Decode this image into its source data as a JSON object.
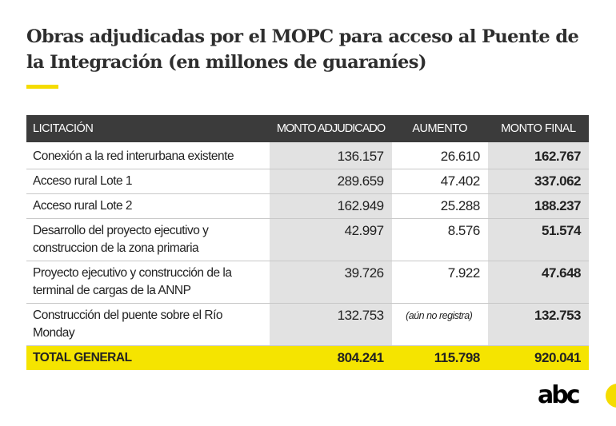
{
  "title": "Obras adjudicadas por el MOPC para acceso al Puente de la Integración (en millones de guaraníes)",
  "logo": "abc",
  "colors": {
    "header": "#3b3b3b",
    "accent": "#f5e400",
    "shade": "#e2e2e2"
  },
  "chart_data": {
    "type": "table",
    "title": "Obras adjudicadas por el MOPC para acceso al Puente de la Integración (en millones de guaraníes)",
    "columns": [
      "LICITACIÓN",
      "MONTO ADJUDICADO",
      "AUMENTO",
      "MONTO FINAL"
    ],
    "rows": [
      {
        "name": "Conexión a la red interurbana existente",
        "monto": "136.157",
        "aumento": "26.610",
        "final": "162.767"
      },
      {
        "name": "Acceso rural Lote 1",
        "monto": "289.659",
        "aumento": "47.402",
        "final": "337.062"
      },
      {
        "name": "Acceso rural Lote 2",
        "monto": "162.949",
        "aumento": "25.288",
        "final": "188.237"
      },
      {
        "name": "Desarrollo del proyecto ejecutivo y construccion de la zona primaria",
        "monto": "42.997",
        "aumento": "8.576",
        "final": "51.574"
      },
      {
        "name": "Proyecto ejecutivo y construcción de la terminal de cargas de la ANNP",
        "monto": "39.726",
        "aumento": "7.922",
        "final": "47.648"
      },
      {
        "name": "Construcción del puente sobre el Río Monday",
        "monto": "132.753",
        "aumento": "(aún no registra)",
        "final": "132.753"
      }
    ],
    "total": {
      "name": "TOTAL GENERAL",
      "monto": "804.241",
      "aumento": "115.798",
      "final": "920.041"
    }
  }
}
